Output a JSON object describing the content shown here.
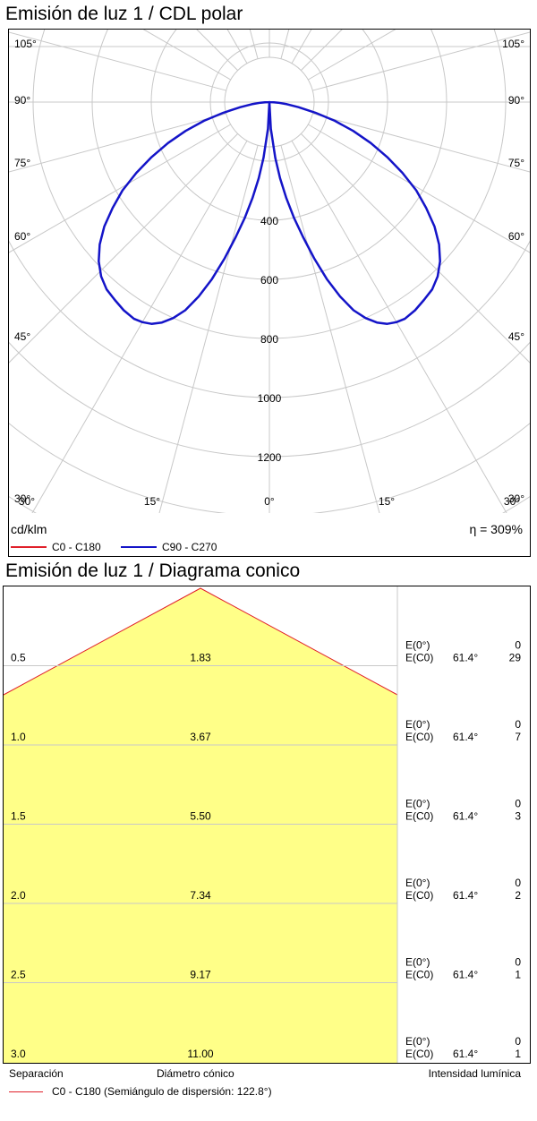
{
  "chart_data": [
    {
      "type": "polar",
      "title": "Emisión de luz 1 / CDL polar",
      "unit": "cd/klm",
      "efficiency": "η = 309%",
      "radial_ticks": [
        400,
        600,
        800,
        1000,
        1200
      ],
      "angle_ticks_left": [
        "105°",
        "90°",
        "75°",
        "60°",
        "45°",
        "30°"
      ],
      "angle_ticks_right": [
        "105°",
        "90°",
        "75°",
        "60°",
        "45°",
        "30°"
      ],
      "angle_ticks_bottom": [
        "30°",
        "15°",
        "0°",
        "15°",
        "30°"
      ],
      "series": [
        {
          "name": "C0 - C180",
          "color": "#e0202a",
          "points": []
        },
        {
          "name": "C90 - C270",
          "color": "#1414c8",
          "points": [
            [
              0,
              0
            ],
            [
              3,
              90
            ],
            [
              6,
              190
            ],
            [
              8,
              260
            ],
            [
              10,
              330
            ],
            [
              12,
              400
            ],
            [
              14,
              470
            ],
            [
              16,
              550
            ],
            [
              18,
              630
            ],
            [
              20,
              700
            ],
            [
              22,
              760
            ],
            [
              24,
              800
            ],
            [
              26,
              830
            ],
            [
              28,
              850
            ],
            [
              30,
              860
            ],
            [
              32,
              865
            ],
            [
              35,
              860
            ],
            [
              38,
              850
            ],
            [
              41,
              840
            ],
            [
              44,
              820
            ],
            [
              47,
              790
            ],
            [
              50,
              750
            ],
            [
              53,
              700
            ],
            [
              56,
              640
            ],
            [
              59,
              580
            ],
            [
              62,
              510
            ],
            [
              65,
              440
            ],
            [
              68,
              370
            ],
            [
              71,
              300
            ],
            [
              74,
              230
            ],
            [
              77,
              160
            ],
            [
              80,
              100
            ],
            [
              83,
              60
            ],
            [
              86,
              30
            ],
            [
              88,
              15
            ],
            [
              90,
              0
            ]
          ]
        }
      ]
    },
    {
      "type": "table",
      "title": "Emisión de luz 1 / Diagrama conico",
      "rows": [
        {
          "separation": "0.5",
          "diameter": "1.83",
          "e0_label": "E(0°)",
          "e0": "0",
          "ec0_label": "E(C0)",
          "angle": "61.4°",
          "ec0": "29"
        },
        {
          "separation": "1.0",
          "diameter": "3.67",
          "e0_label": "E(0°)",
          "e0": "0",
          "ec0_label": "E(C0)",
          "angle": "61.4°",
          "ec0": "7"
        },
        {
          "separation": "1.5",
          "diameter": "5.50",
          "e0_label": "E(0°)",
          "e0": "0",
          "ec0_label": "E(C0)",
          "angle": "61.4°",
          "ec0": "3"
        },
        {
          "separation": "2.0",
          "diameter": "7.34",
          "e0_label": "E(0°)",
          "e0": "0",
          "ec0_label": "E(C0)",
          "angle": "61.4°",
          "ec0": "2"
        },
        {
          "separation": "2.5",
          "diameter": "9.17",
          "e0_label": "E(0°)",
          "e0": "0",
          "ec0_label": "E(C0)",
          "angle": "61.4°",
          "ec0": "1"
        },
        {
          "separation": "3.0",
          "diameter": "11.00",
          "e0_label": "E(0°)",
          "e0": "0",
          "ec0_label": "E(C0)",
          "angle": "61.4°",
          "ec0": "1"
        }
      ],
      "footer": {
        "separation": "Separación",
        "diameter": "Diámetro cónico",
        "intensity": "Intensidad lumínica",
        "legend": "C0 - C180 (Semiángulo de dispersión: 122.8°)"
      },
      "fill_color": "#ffff88",
      "edge_color": "#e0202a"
    }
  ]
}
